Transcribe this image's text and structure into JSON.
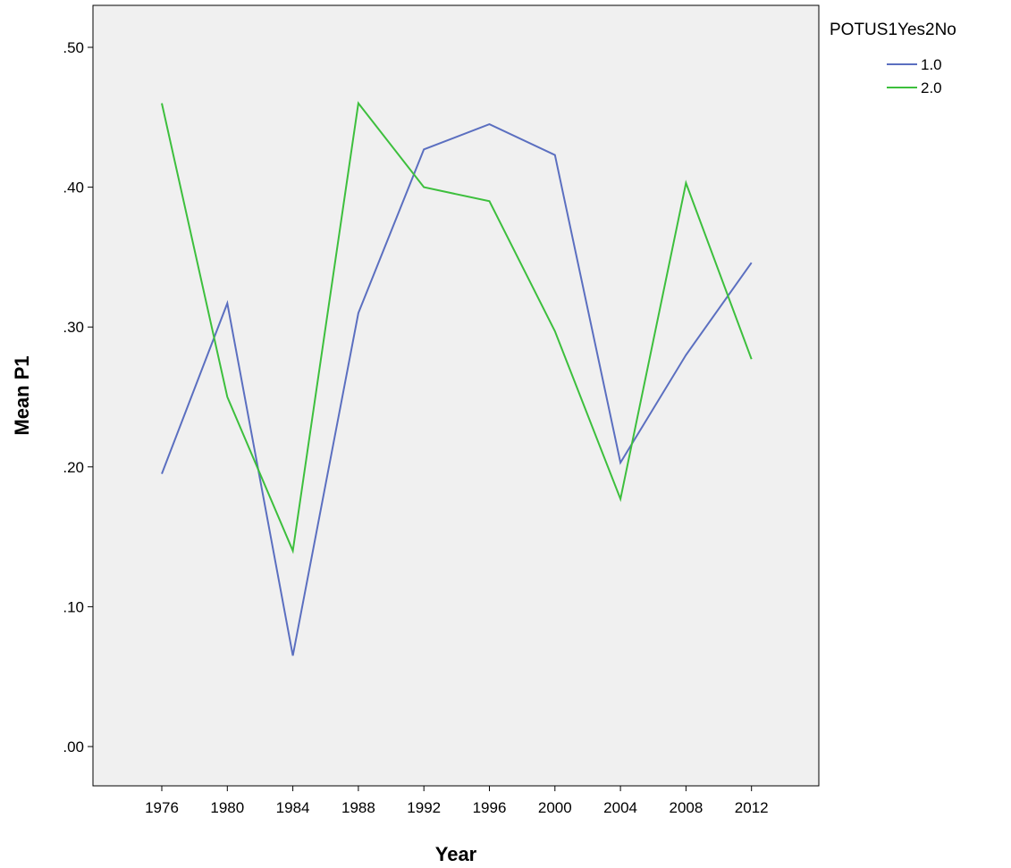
{
  "chart_data": {
    "type": "line",
    "xlabel": "Year",
    "ylabel": "Mean P1",
    "x": [
      "1976",
      "1980",
      "1984",
      "1988",
      "1992",
      "1996",
      "2000",
      "2004",
      "2008",
      "2012"
    ],
    "ylim": [
      0,
      0.5
    ],
    "yticks": [
      0.0,
      0.1,
      0.2,
      0.3,
      0.4,
      0.5
    ],
    "ytick_labels": [
      ".00",
      ".10",
      ".20",
      ".30",
      ".40",
      ".50"
    ],
    "grid": false,
    "plot_background": "#f0f0f0",
    "legend": {
      "title": "POTUS1Yes2No",
      "position": "right"
    },
    "series": [
      {
        "name": "1.0",
        "color": "#5b6fc0",
        "values": [
          0.195,
          0.317,
          0.065,
          0.31,
          0.427,
          0.445,
          0.423,
          0.203,
          0.28,
          0.346
        ]
      },
      {
        "name": "2.0",
        "color": "#3dbf3d",
        "values": [
          0.46,
          0.25,
          0.14,
          0.46,
          0.4,
          0.39,
          0.297,
          0.177,
          0.403,
          0.277
        ]
      }
    ]
  }
}
